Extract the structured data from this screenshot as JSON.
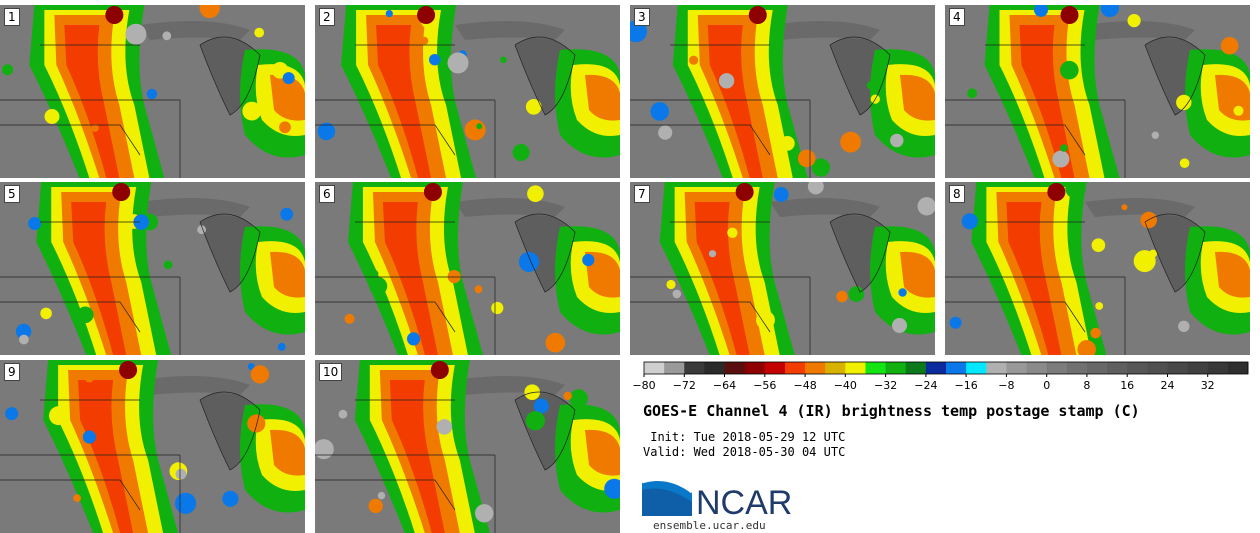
{
  "colors": {
    "background": "#7a7a7a",
    "cloud_scale": [
      "#cfcfcf",
      "#9a9a9a",
      "#3a3a3a",
      "#2a2a2a",
      "#5a0f0f",
      "#8e0000",
      "#c40000",
      "#f23c00",
      "#f07a00",
      "#d9b200",
      "#f0f000",
      "#14e414",
      "#10b010",
      "#0a7a1a",
      "#0a2a9e",
      "#0a78e8",
      "#00e8ff",
      "#b0b0b0",
      "#999999",
      "#8a8a8a",
      "#7c7c7c",
      "#717171",
      "#686868",
      "#5f5f5f",
      "#575757",
      "#505050",
      "#484848",
      "#404040",
      "#383838",
      "#2e2e2e"
    ]
  },
  "panels": [
    {
      "label": "1"
    },
    {
      "label": "2"
    },
    {
      "label": "3"
    },
    {
      "label": "4"
    },
    {
      "label": "5"
    },
    {
      "label": "6"
    },
    {
      "label": "7"
    },
    {
      "label": "8"
    },
    {
      "label": "9"
    },
    {
      "label": "10"
    }
  ],
  "colorbar": {
    "ticks": [
      "−80",
      "−72",
      "−64",
      "−56",
      "−48",
      "−40",
      "−32",
      "−24",
      "−16",
      "−8",
      "0",
      "8",
      "16",
      "24",
      "32"
    ]
  },
  "title": "GOES-E Channel 4 (IR) brightness temp postage stamp (C)",
  "init_text": " Init: Tue 2018-05-29 12 UTC",
  "valid_text": "Valid: Wed 2018-05-30 04 UTC",
  "logo_text": "NCAR",
  "site_text": "ensemble.ucar.edu"
}
